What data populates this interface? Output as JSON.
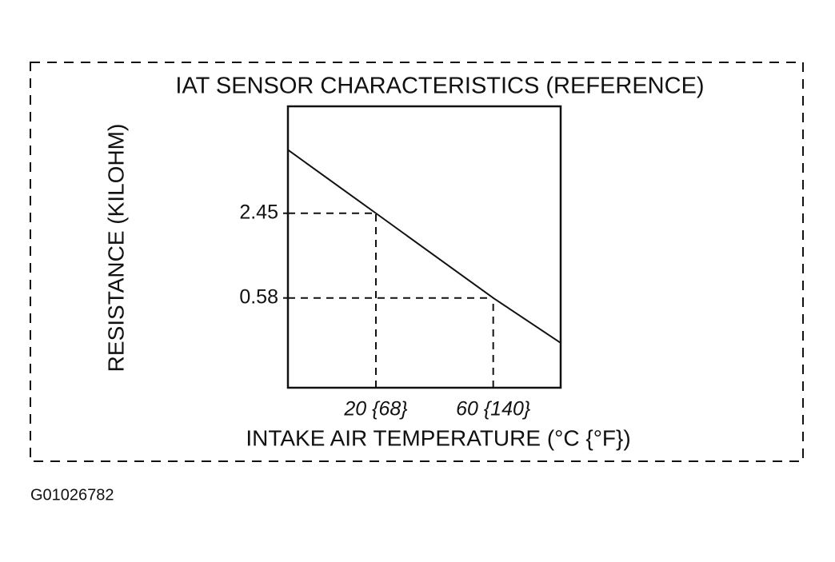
{
  "chart_data": {
    "type": "line",
    "title": "IAT SENSOR CHARACTERISTICS (REFERENCE)",
    "x_label": "INTAKE AIR TEMPERATURE (°C {°F})",
    "y_label": "RESISTANCE (KILOHM)",
    "x": [
      -10,
      20,
      60,
      83
    ],
    "values": [
      7.2,
      2.45,
      0.58,
      0.27
    ],
    "color": "#111111",
    "xlim": [
      -10,
      83
    ],
    "ylim": [
      0.126,
      15.1
    ],
    "y_scale": "log",
    "xticks": [
      {
        "value": 20,
        "label": "20 {68}"
      },
      {
        "value": 60,
        "label": "60 {140}"
      }
    ],
    "yticks": [
      2.45,
      0.58
    ],
    "grid": false
  },
  "figure_id": "G01026782"
}
